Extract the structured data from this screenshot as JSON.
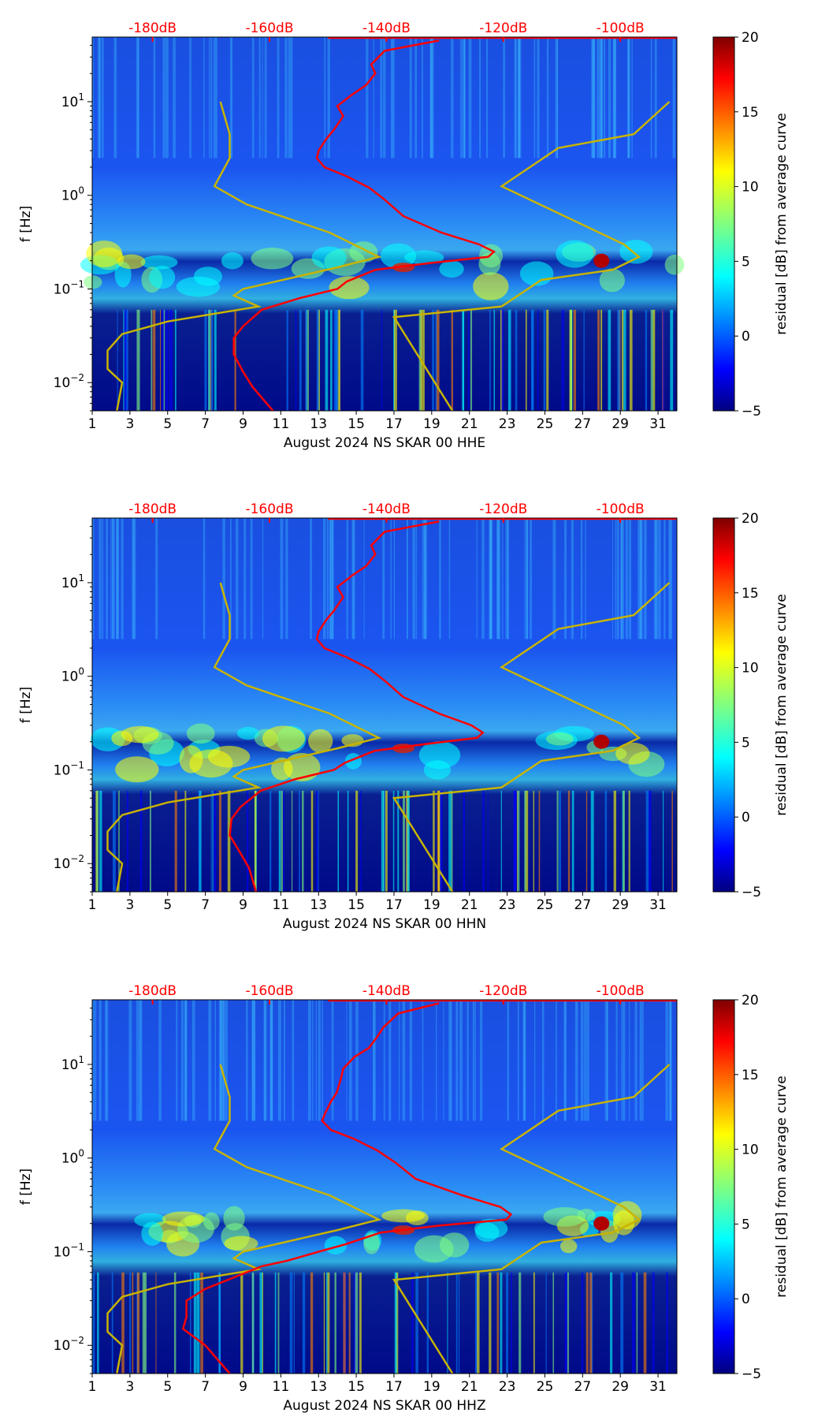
{
  "chart_data": [
    {
      "type": "heatmap",
      "title": "",
      "xlabel": "August 2024 NS SKAR 00 HHE",
      "ylabel": "f [Hz]",
      "red_curve_db": [
        [
          -131.0,
          45
        ],
        [
          -140.3,
          35
        ],
        [
          -142.6,
          25
        ],
        [
          -141.9,
          20
        ],
        [
          -143.5,
          15
        ],
        [
          -145.8,
          12
        ],
        [
          -148.4,
          9
        ],
        [
          -147.4,
          7
        ],
        [
          -149.0,
          5
        ],
        [
          -150.3,
          4
        ],
        [
          -151.6,
          3
        ],
        [
          -151.9,
          2.5
        ],
        [
          -150.6,
          2
        ],
        [
          -146.8,
          1.6
        ],
        [
          -142.9,
          1.2
        ],
        [
          -140.3,
          0.9
        ],
        [
          -137.1,
          0.6
        ],
        [
          -130.6,
          0.4
        ],
        [
          -124.2,
          0.3
        ],
        [
          -121.6,
          0.25
        ],
        [
          -122.6,
          0.22
        ],
        [
          -132.3,
          0.19
        ],
        [
          -141.9,
          0.16
        ],
        [
          -146.8,
          0.12
        ],
        [
          -148.4,
          0.1
        ],
        [
          -154.8,
          0.08
        ],
        [
          -161.3,
          0.06
        ],
        [
          -164.5,
          0.04
        ],
        [
          -166.1,
          0.03
        ],
        [
          -166.1,
          0.02
        ],
        [
          -164.5,
          0.013
        ],
        [
          -162.9,
          0.009
        ],
        [
          -159.4,
          0.005
        ]
      ]
    },
    {
      "type": "heatmap",
      "title": "",
      "xlabel": "August 2024 NS SKAR 00 HHN",
      "ylabel": "f [Hz]",
      "red_curve_db": [
        [
          -131.0,
          45
        ],
        [
          -140.3,
          35
        ],
        [
          -142.6,
          25
        ],
        [
          -141.9,
          20
        ],
        [
          -143.5,
          15
        ],
        [
          -145.8,
          12
        ],
        [
          -148.4,
          9
        ],
        [
          -147.4,
          7
        ],
        [
          -149.0,
          5
        ],
        [
          -150.3,
          4
        ],
        [
          -151.6,
          3
        ],
        [
          -151.9,
          2.5
        ],
        [
          -150.6,
          2
        ],
        [
          -146.8,
          1.6
        ],
        [
          -142.9,
          1.2
        ],
        [
          -140.3,
          0.9
        ],
        [
          -137.1,
          0.6
        ],
        [
          -131.0,
          0.4
        ],
        [
          -125.5,
          0.3
        ],
        [
          -123.5,
          0.25
        ],
        [
          -124.5,
          0.22
        ],
        [
          -133.0,
          0.19
        ],
        [
          -142.0,
          0.16
        ],
        [
          -147.0,
          0.12
        ],
        [
          -149.0,
          0.1
        ],
        [
          -155.5,
          0.08
        ],
        [
          -161.5,
          0.06
        ],
        [
          -165.0,
          0.04
        ],
        [
          -166.5,
          0.03
        ],
        [
          -166.8,
          0.02
        ],
        [
          -165.0,
          0.013
        ],
        [
          -163.5,
          0.009
        ],
        [
          -162.3,
          0.005
        ]
      ]
    },
    {
      "type": "heatmap",
      "title": "",
      "xlabel": "August 2024 NS SKAR 00 HHZ",
      "ylabel": "f [Hz]",
      "red_curve_db": [
        [
          -131.0,
          45
        ],
        [
          -138.0,
          35
        ],
        [
          -140.5,
          25
        ],
        [
          -141.5,
          20
        ],
        [
          -143.0,
          15
        ],
        [
          -145.5,
          12
        ],
        [
          -147.4,
          9
        ],
        [
          -147.8,
          7
        ],
        [
          -148.5,
          5
        ],
        [
          -149.5,
          4
        ],
        [
          -150.5,
          3
        ],
        [
          -151.0,
          2.5
        ],
        [
          -149.5,
          2
        ],
        [
          -145.5,
          1.6
        ],
        [
          -141.5,
          1.2
        ],
        [
          -138.5,
          0.9
        ],
        [
          -135.0,
          0.6
        ],
        [
          -127.0,
          0.4
        ],
        [
          -120.5,
          0.3
        ],
        [
          -118.7,
          0.25
        ],
        [
          -119.5,
          0.22
        ],
        [
          -131.0,
          0.19
        ],
        [
          -141.0,
          0.16
        ],
        [
          -147.0,
          0.12
        ],
        [
          -151.6,
          0.1
        ],
        [
          -157.0,
          0.08
        ],
        [
          -161.3,
          0.07
        ],
        [
          -171.0,
          0.04
        ],
        [
          -174.2,
          0.03
        ],
        [
          -174.2,
          0.02
        ],
        [
          -174.8,
          0.015
        ],
        [
          -171.0,
          0.01
        ],
        [
          -166.8,
          0.005
        ]
      ]
    }
  ],
  "shared": {
    "x_range_days": [
      1,
      32
    ],
    "y_range_hz": [
      0.005,
      49
    ],
    "x_ticks": [
      "1",
      "3",
      "5",
      "7",
      "9",
      "11",
      "13",
      "15",
      "17",
      "19",
      "21",
      "23",
      "25",
      "27",
      "29",
      "31"
    ],
    "y_ticks": [
      {
        "value": 0.01,
        "base": "10",
        "exp": "−2"
      },
      {
        "value": 0.1,
        "base": "10",
        "exp": "−1"
      },
      {
        "value": 1,
        "base": "10",
        "exp": "0"
      },
      {
        "value": 10,
        "base": "10",
        "exp": "1"
      }
    ],
    "top_ticks": [
      {
        "db": -180,
        "label": "-180dB"
      },
      {
        "db": -160,
        "label": "-160dB"
      },
      {
        "db": -140,
        "label": "-140dB"
      },
      {
        "db": -120,
        "label": "-120dB"
      },
      {
        "db": -100,
        "label": "-100dB"
      }
    ],
    "top_axis_db_per_day": 3.226,
    "top_axis_ref": {
      "db": -180,
      "day": 4.2
    },
    "colorbar": {
      "label": "residual [dB] from average curve",
      "range": [
        -5,
        20
      ],
      "ticks": [
        "−5",
        "0",
        "5",
        "10",
        "15",
        "20"
      ]
    },
    "low_noise_model_db": [
      [
        -168.4,
        10
      ],
      [
        -166.8,
        4.5
      ],
      [
        -166.8,
        2.5
      ],
      [
        -169.4,
        1.25
      ],
      [
        -163.9,
        0.8
      ],
      [
        -149.7,
        0.4
      ],
      [
        -141.3,
        0.22
      ],
      [
        -148.4,
        0.17
      ],
      [
        -164.5,
        0.1
      ],
      [
        -166.1,
        0.085
      ],
      [
        -161.9,
        0.065
      ],
      [
        -177.4,
        0.045
      ],
      [
        -185.2,
        0.033
      ],
      [
        -187.7,
        0.022
      ],
      [
        -187.7,
        0.014
      ],
      [
        -185.2,
        0.01
      ],
      [
        -186.1,
        0.005
      ]
    ],
    "high_noise_model_db": [
      [
        -91.6,
        10
      ],
      [
        -97.7,
        4.5
      ],
      [
        -110.6,
        3.2
      ],
      [
        -120.3,
        1.25
      ],
      [
        -99.4,
        0.3
      ],
      [
        -96.8,
        0.22
      ],
      [
        -101.3,
        0.16
      ],
      [
        -113.5,
        0.125
      ],
      [
        -120.3,
        0.065
      ],
      [
        -138.7,
        0.05
      ],
      [
        -128.7,
        0.005
      ]
    ],
    "colors": {
      "red_curve": "#ff0000",
      "noise_models": "#c8b400",
      "top_axis": "#ff0000"
    }
  }
}
